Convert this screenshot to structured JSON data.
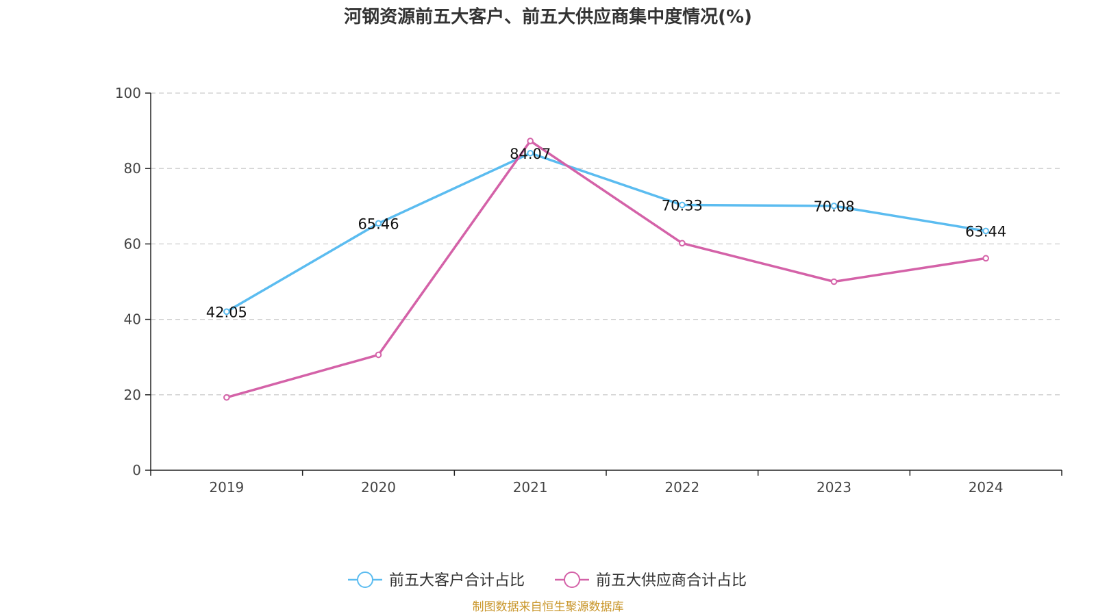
{
  "chart_data": {
    "type": "line",
    "title": "河钢资源前五大客户、前五大供应商集中度情况(%)",
    "categories": [
      "2019",
      "2020",
      "2021",
      "2022",
      "2023",
      "2024"
    ],
    "ylim": [
      0,
      100
    ],
    "yticks": [
      0,
      20,
      40,
      60,
      80,
      100
    ],
    "grid": true,
    "series": [
      {
        "name": "前五大客户合计占比",
        "color": "#5bbcf0",
        "values": [
          42.05,
          65.46,
          84.07,
          70.33,
          70.08,
          63.44
        ],
        "labels": [
          "42.05",
          "65.46",
          "84.07",
          "70.33",
          "70.08",
          "63.44"
        ]
      },
      {
        "name": "前五大供应商合计占比",
        "color": "#d462a8",
        "values": [
          19.3,
          30.6,
          87.3,
          60.2,
          50.0,
          56.2
        ]
      }
    ],
    "legend_position": "bottom-center"
  },
  "source": {
    "text": "制图数据来自恒生聚源数据库",
    "color": "#c9962a"
  }
}
